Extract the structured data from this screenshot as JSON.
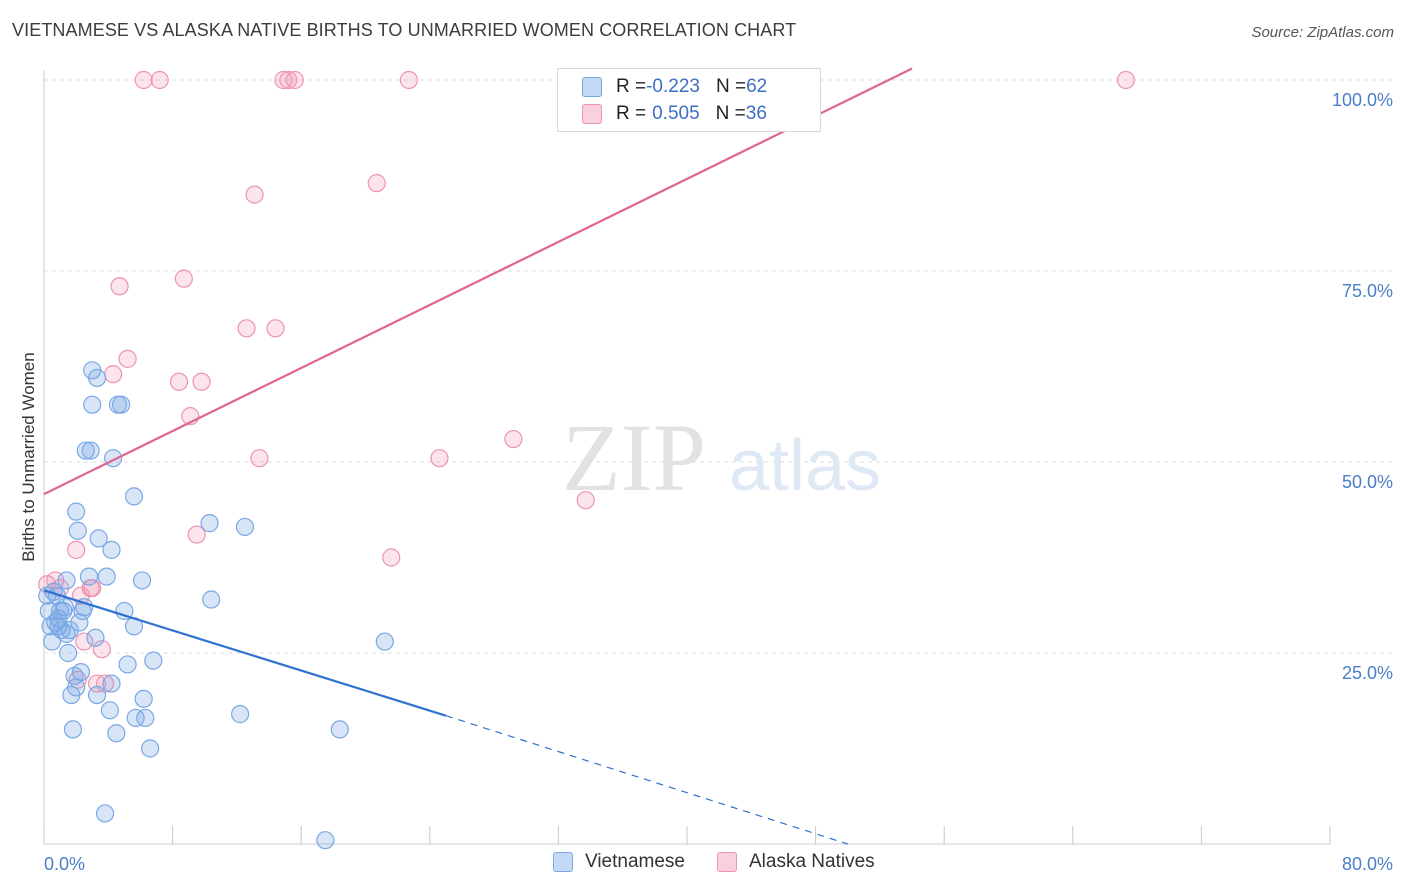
{
  "title": "VIETNAMESE VS ALASKA NATIVE BIRTHS TO UNMARRIED WOMEN CORRELATION CHART",
  "source": "Source: ZipAtlas.com",
  "watermark": {
    "zip": "ZIP",
    "atlas": "atlas"
  },
  "colors": {
    "blue": "#7aa8e6",
    "blue_fill": "rgba(122,168,230,0.30)",
    "blue_line": "#2f72d0",
    "pink": "#ee93b0",
    "pink_fill": "rgba(238,147,176,0.25)",
    "pink_line": "#e06690",
    "grid": "#dcdcdc",
    "tick_text": "#4a7ec9"
  },
  "legend_top": {
    "rows": [
      {
        "series": "Vietnamese",
        "r_label": "R = ",
        "r_value": "-0.223",
        "n_label": "N = ",
        "n_value": "62"
      },
      {
        "series": "Alaska Natives",
        "r_label": "R = ",
        "r_value": "0.505",
        "n_label": "N = ",
        "n_value": "36"
      }
    ]
  },
  "legend_bottom": [
    "Vietnamese",
    "Alaska Natives"
  ],
  "chart_data": {
    "type": "scatter",
    "title": "VIETNAMESE VS ALASKA NATIVE BIRTHS TO UNMARRIED WOMEN CORRELATION CHART",
    "xlabel": "",
    "ylabel": "Births to Unmarried Women",
    "xlim": [
      0,
      80
    ],
    "ylim": [
      0,
      100
    ],
    "x_tick_labels": [
      "0.0%",
      "80.0%"
    ],
    "y_ticks": [
      25,
      50,
      75,
      100
    ],
    "y_tick_labels": [
      "25.0%",
      "50.0%",
      "75.0%",
      "100.0%"
    ],
    "grid": true,
    "series": [
      {
        "name": "Vietnamese",
        "color": "blue",
        "points": [
          [
            0.3,
            30.5
          ],
          [
            0.4,
            28.5
          ],
          [
            0.5,
            26.5
          ],
          [
            0.6,
            33
          ],
          [
            0.7,
            29
          ],
          [
            0.8,
            32.5
          ],
          [
            0.9,
            29.5
          ],
          [
            1.0,
            30.5
          ],
          [
            1.1,
            28
          ],
          [
            1.2,
            30.5
          ],
          [
            1.3,
            31
          ],
          [
            1.4,
            27.5
          ],
          [
            1.5,
            25
          ],
          [
            1.6,
            28
          ],
          [
            1.7,
            19.5
          ],
          [
            1.8,
            15
          ],
          [
            1.9,
            22
          ],
          [
            2.0,
            20.5
          ],
          [
            2.0,
            43.5
          ],
          [
            2.1,
            41
          ],
          [
            2.2,
            29
          ],
          [
            2.3,
            22.5
          ],
          [
            2.4,
            30.5
          ],
          [
            2.5,
            31
          ],
          [
            2.6,
            51.5
          ],
          [
            2.8,
            35
          ],
          [
            2.9,
            51.5
          ],
          [
            3.0,
            62
          ],
          [
            3.0,
            57.5
          ],
          [
            3.2,
            27
          ],
          [
            3.3,
            61
          ],
          [
            3.3,
            19.5
          ],
          [
            3.4,
            40
          ],
          [
            3.8,
            4
          ],
          [
            3.9,
            35
          ],
          [
            4.1,
            17.5
          ],
          [
            4.2,
            38.5
          ],
          [
            4.3,
            50.5
          ],
          [
            4.2,
            21
          ],
          [
            4.5,
            14.5
          ],
          [
            4.6,
            57.5
          ],
          [
            4.8,
            57.5
          ],
          [
            5.0,
            30.5
          ],
          [
            5.2,
            23.5
          ],
          [
            5.6,
            45.5
          ],
          [
            5.6,
            28.5
          ],
          [
            5.7,
            16.5
          ],
          [
            6.2,
            19
          ],
          [
            6.3,
            16.5
          ],
          [
            6.1,
            34.5
          ],
          [
            6.6,
            12.5
          ],
          [
            6.8,
            24
          ],
          [
            10.3,
            42
          ],
          [
            10.4,
            32
          ],
          [
            12.2,
            17
          ],
          [
            12.5,
            41.5
          ],
          [
            17.5,
            0.5
          ],
          [
            18.4,
            15
          ],
          [
            21.2,
            26.5
          ],
          [
            0.2,
            32.5
          ],
          [
            1.4,
            34.5
          ],
          [
            0.9,
            28.5
          ]
        ]
      },
      {
        "name": "Alaska Natives",
        "color": "pink",
        "points": [
          [
            0.2,
            34
          ],
          [
            0.7,
            34.5
          ],
          [
            1.0,
            33.5
          ],
          [
            2.1,
            21.5
          ],
          [
            2.0,
            38.5
          ],
          [
            2.3,
            32.5
          ],
          [
            2.5,
            26.5
          ],
          [
            2.9,
            33.5
          ],
          [
            3.0,
            33.5
          ],
          [
            3.3,
            21
          ],
          [
            3.6,
            25.5
          ],
          [
            3.8,
            21
          ],
          [
            4.3,
            61.5
          ],
          [
            4.7,
            73
          ],
          [
            5.2,
            63.5
          ],
          [
            6.2,
            100
          ],
          [
            7.2,
            100
          ],
          [
            8.4,
            60.5
          ],
          [
            8.7,
            74
          ],
          [
            9.1,
            56
          ],
          [
            9.5,
            40.5
          ],
          [
            9.8,
            60.5
          ],
          [
            12.6,
            67.5
          ],
          [
            13.1,
            85
          ],
          [
            13.4,
            50.5
          ],
          [
            14.4,
            67.5
          ],
          [
            14.9,
            100
          ],
          [
            15.2,
            100
          ],
          [
            15.6,
            100
          ],
          [
            20.7,
            86.5
          ],
          [
            21.6,
            37.5
          ],
          [
            22.7,
            100
          ],
          [
            24.6,
            50.5
          ],
          [
            29.2,
            53
          ],
          [
            33.7,
            45
          ],
          [
            67.3,
            100
          ]
        ]
      }
    ],
    "trend_lines": [
      {
        "series": "Vietnamese",
        "x": [
          0,
          25
        ],
        "y": [
          33.2,
          16.8
        ],
        "dashed_x": [
          25,
          50
        ],
        "dashed_y": [
          16.8,
          0.0
        ]
      },
      {
        "series": "Alaska Natives",
        "x": [
          0,
          54
        ],
        "y": [
          45.8,
          101.5
        ]
      }
    ]
  }
}
